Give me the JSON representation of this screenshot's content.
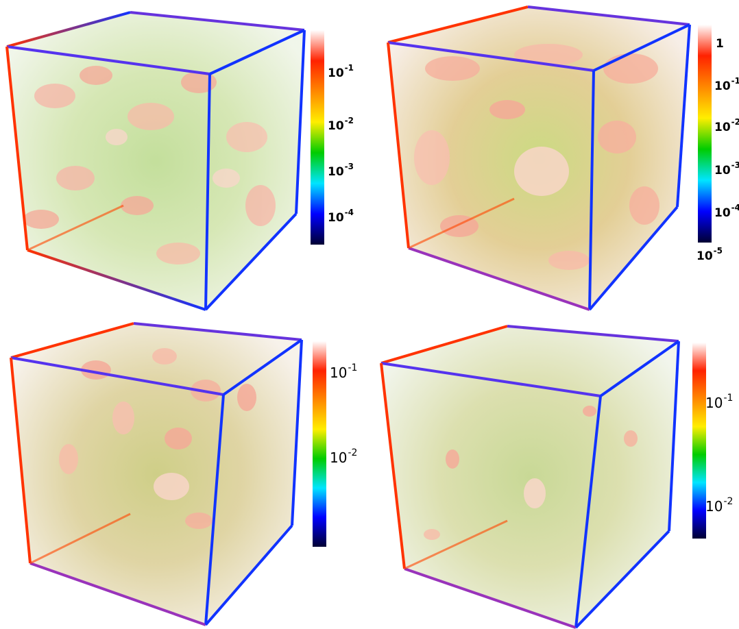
{
  "panels": [
    {
      "id": "top-left",
      "colorbar_gradient": [
        "#000033",
        "#0000ff",
        "#00e5ff",
        "#00cc00",
        "#ffee00",
        "#ff8800",
        "#ff2200",
        "#ffffff"
      ],
      "ticks": [
        {
          "base": "10",
          "exp": "-1"
        },
        {
          "base": "10",
          "exp": "-2"
        },
        {
          "base": "10",
          "exp": "-3"
        },
        {
          "base": "10",
          "exp": "-4"
        }
      ]
    },
    {
      "id": "top-right",
      "colorbar_gradient": [
        "#000033",
        "#0000ff",
        "#00e5ff",
        "#00cc00",
        "#ffee00",
        "#ff8800",
        "#ff2200",
        "#ffffff"
      ],
      "ticks": [
        {
          "base": "1",
          "exp": ""
        },
        {
          "base": "10",
          "exp": "-1"
        },
        {
          "base": "10",
          "exp": "-2"
        },
        {
          "base": "10",
          "exp": "-3"
        },
        {
          "base": "10",
          "exp": "-4"
        },
        {
          "base": "10",
          "exp": "-5"
        }
      ]
    },
    {
      "id": "bottom-left",
      "colorbar_gradient": [
        "#000033",
        "#0000ff",
        "#00e5ff",
        "#00cc00",
        "#ffee00",
        "#ff8800",
        "#ff2200",
        "#ffffff"
      ],
      "ticks": [
        {
          "base": "10",
          "exp": "-1"
        },
        {
          "base": "10",
          "exp": "-2"
        }
      ]
    },
    {
      "id": "bottom-right",
      "colorbar_gradient": [
        "#000033",
        "#0000ff",
        "#00e5ff",
        "#00cc00",
        "#ffee00",
        "#ff8800",
        "#ff2200",
        "#ffffff"
      ],
      "ticks": [
        {
          "base": "10",
          "exp": "-1"
        },
        {
          "base": "10",
          "exp": "-2"
        }
      ]
    }
  ],
  "cube_edge_colors": {
    "left": "#ff3300",
    "right": "#1133ff",
    "mid": "#8833cc"
  }
}
